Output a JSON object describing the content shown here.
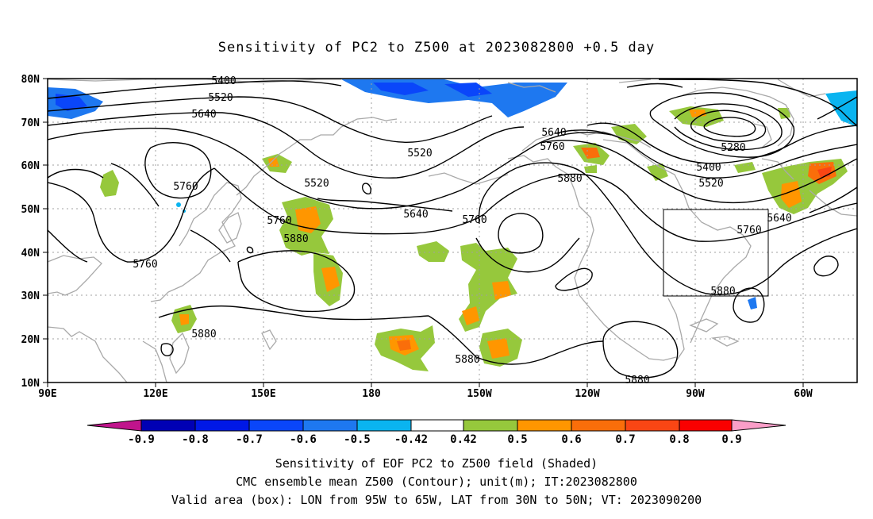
{
  "title": "Sensitivity of PC2 to Z500 at 2023082800 +0.5 day",
  "map": {
    "lat_labels": [
      "80N",
      "70N",
      "60N",
      "50N",
      "40N",
      "30N",
      "20N",
      "10N"
    ],
    "lon_labels": [
      "90E",
      "120E",
      "150E",
      "180",
      "150W",
      "120W",
      "90W",
      "60W"
    ],
    "contour_labels": [
      "5400",
      "5520",
      "5640",
      "5280",
      "5400",
      "5520",
      "5640",
      "5760",
      "5880",
      "5520",
      "5640",
      "5760",
      "5760",
      "5760",
      "5760",
      "5880",
      "5880",
      "5880",
      "5880",
      "5880",
      "5640",
      "5760",
      "5520"
    ],
    "box_label": "valid-area-box"
  },
  "colorbar": {
    "ticks": [
      "-0.9",
      "-0.8",
      "-0.7",
      "-0.6",
      "-0.5",
      "-0.42",
      "0.42",
      "0.5",
      "0.6",
      "0.7",
      "0.8",
      "0.9"
    ],
    "colors": {
      "low_tri": "#c0148c",
      "c1": "#0000b4",
      "c2": "#0018e6",
      "c3": "#0a46fa",
      "c4": "#1e78f0",
      "c5": "#0ab4f0",
      "c6": "#00d2fa",
      "white": "#ffffff",
      "c7": "#96c83c",
      "c8": "#ff9600",
      "c9": "#fa6e0a",
      "c10": "#fa4614",
      "c11": "#fa0000",
      "high_tri": "#fa9ec8"
    }
  },
  "captions": {
    "line1": "Sensitivity of EOF PC2 to Z500 field (Shaded)",
    "line2": "CMC ensemble mean Z500 (Contour); unit(m); IT:2023082800",
    "line3": "Valid area (box): LON from 95W to 65W, LAT from 30N to 50N; VT: 2023090200"
  }
}
